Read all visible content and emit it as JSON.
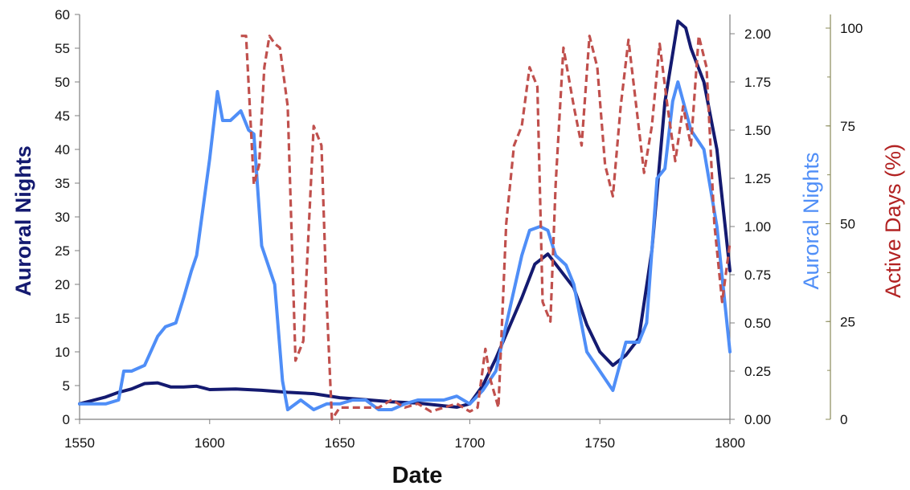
{
  "chart_data": {
    "type": "line",
    "xlabel": "Date",
    "xlim": [
      1550,
      1800
    ],
    "x_ticks": [
      "1550",
      "1600",
      "1650",
      "1700",
      "1750",
      "1800"
    ],
    "axes": {
      "left": {
        "label": "Auroral Nights",
        "color": "#141a70",
        "ylim": [
          0,
          60
        ],
        "ticks": [
          "0",
          "5",
          "10",
          "15",
          "20",
          "25",
          "30",
          "35",
          "40",
          "45",
          "50",
          "55",
          "60"
        ]
      },
      "right1": {
        "label": "Auroral Nights",
        "color": "#4f8ef7",
        "ylim": [
          0,
          2.1
        ],
        "ticks": [
          "0.00",
          "0.25",
          "0.50",
          "0.75",
          "1.00",
          "1.25",
          "1.50",
          "1.75",
          "2.00"
        ]
      },
      "right2": {
        "label": "Active Days (%)",
        "color": "#b22222",
        "ylim": [
          0,
          100
        ],
        "ticks": [
          "0",
          "25",
          "50",
          "75",
          "100"
        ]
      }
    },
    "series": [
      {
        "axis": "left",
        "color": "#141a70",
        "style": "solid",
        "x": [
          1550,
          1555,
          1560,
          1565,
          1570,
          1575,
          1580,
          1585,
          1590,
          1595,
          1600,
          1610,
          1620,
          1630,
          1640,
          1650,
          1660,
          1670,
          1680,
          1690,
          1695,
          1700,
          1705,
          1710,
          1715,
          1720,
          1725,
          1730,
          1735,
          1740,
          1745,
          1750,
          1755,
          1760,
          1765,
          1770,
          1775,
          1780,
          1783,
          1785,
          1790,
          1795,
          1800
        ],
        "values": [
          2.3,
          2.8,
          3.3,
          4.0,
          4.5,
          5.3,
          5.4,
          4.8,
          4.8,
          4.9,
          4.4,
          4.5,
          4.3,
          4.0,
          3.8,
          3.2,
          2.9,
          2.6,
          2.4,
          2.0,
          1.8,
          2.3,
          5.0,
          9.0,
          13.5,
          18.0,
          23.0,
          24.5,
          22.0,
          19.5,
          14.0,
          10.0,
          8.0,
          9.5,
          12.0,
          25.0,
          47.0,
          59.0,
          58.0,
          55.0,
          50.0,
          40.0,
          22.0
        ]
      },
      {
        "axis": "right1",
        "color": "#4f8ef7",
        "style": "solid",
        "x": [
          1550,
          1560,
          1565,
          1567,
          1570,
          1575,
          1580,
          1583,
          1587,
          1590,
          1593,
          1595,
          1600,
          1603,
          1605,
          1608,
          1612,
          1615,
          1617,
          1620,
          1625,
          1628,
          1630,
          1635,
          1640,
          1645,
          1650,
          1655,
          1660,
          1665,
          1670,
          1675,
          1680,
          1685,
          1690,
          1695,
          1700,
          1705,
          1710,
          1715,
          1720,
          1723,
          1727,
          1730,
          1733,
          1737,
          1740,
          1745,
          1750,
          1755,
          1760,
          1765,
          1768,
          1772,
          1775,
          1778,
          1780,
          1782,
          1785,
          1790,
          1795,
          1800
        ],
        "values": [
          0.08,
          0.08,
          0.1,
          0.25,
          0.25,
          0.28,
          0.43,
          0.48,
          0.5,
          0.63,
          0.77,
          0.85,
          1.35,
          1.7,
          1.55,
          1.55,
          1.6,
          1.5,
          1.48,
          0.9,
          0.7,
          0.2,
          0.05,
          0.1,
          0.05,
          0.08,
          0.08,
          0.1,
          0.1,
          0.05,
          0.05,
          0.08,
          0.1,
          0.1,
          0.1,
          0.12,
          0.08,
          0.15,
          0.25,
          0.55,
          0.85,
          0.98,
          1.0,
          0.98,
          0.85,
          0.8,
          0.7,
          0.35,
          0.25,
          0.15,
          0.4,
          0.4,
          0.5,
          1.25,
          1.3,
          1.65,
          1.75,
          1.65,
          1.5,
          1.4,
          1.0,
          0.35
        ]
      },
      {
        "axis": "right2",
        "color": "#c0504d",
        "style": "dashed",
        "x": [
          1612,
          1614,
          1617,
          1619,
          1621,
          1623,
          1625,
          1627,
          1630,
          1633,
          1636,
          1640,
          1643,
          1645,
          1647,
          1650,
          1655,
          1660,
          1665,
          1670,
          1675,
          1680,
          1685,
          1690,
          1695,
          1700,
          1703,
          1706,
          1708,
          1711,
          1714,
          1717,
          1720,
          1723,
          1726,
          1728,
          1731,
          1733,
          1736,
          1740,
          1743,
          1746,
          1749,
          1752,
          1755,
          1758,
          1761,
          1764,
          1767,
          1770,
          1773,
          1776,
          1779,
          1782,
          1785,
          1788,
          1791,
          1794,
          1797,
          1800
        ],
        "values": [
          98,
          98,
          60,
          65,
          90,
          98,
          96,
          95,
          80,
          15,
          20,
          75,
          70,
          30,
          0,
          3,
          3,
          3,
          3,
          5,
          3,
          4,
          2,
          3,
          4,
          2,
          3,
          18,
          10,
          3,
          50,
          70,
          75,
          90,
          85,
          30,
          25,
          60,
          95,
          80,
          70,
          98,
          90,
          65,
          57,
          80,
          97,
          80,
          63,
          75,
          96,
          80,
          66,
          80,
          70,
          98,
          90,
          50,
          30,
          45
        ]
      }
    ]
  }
}
